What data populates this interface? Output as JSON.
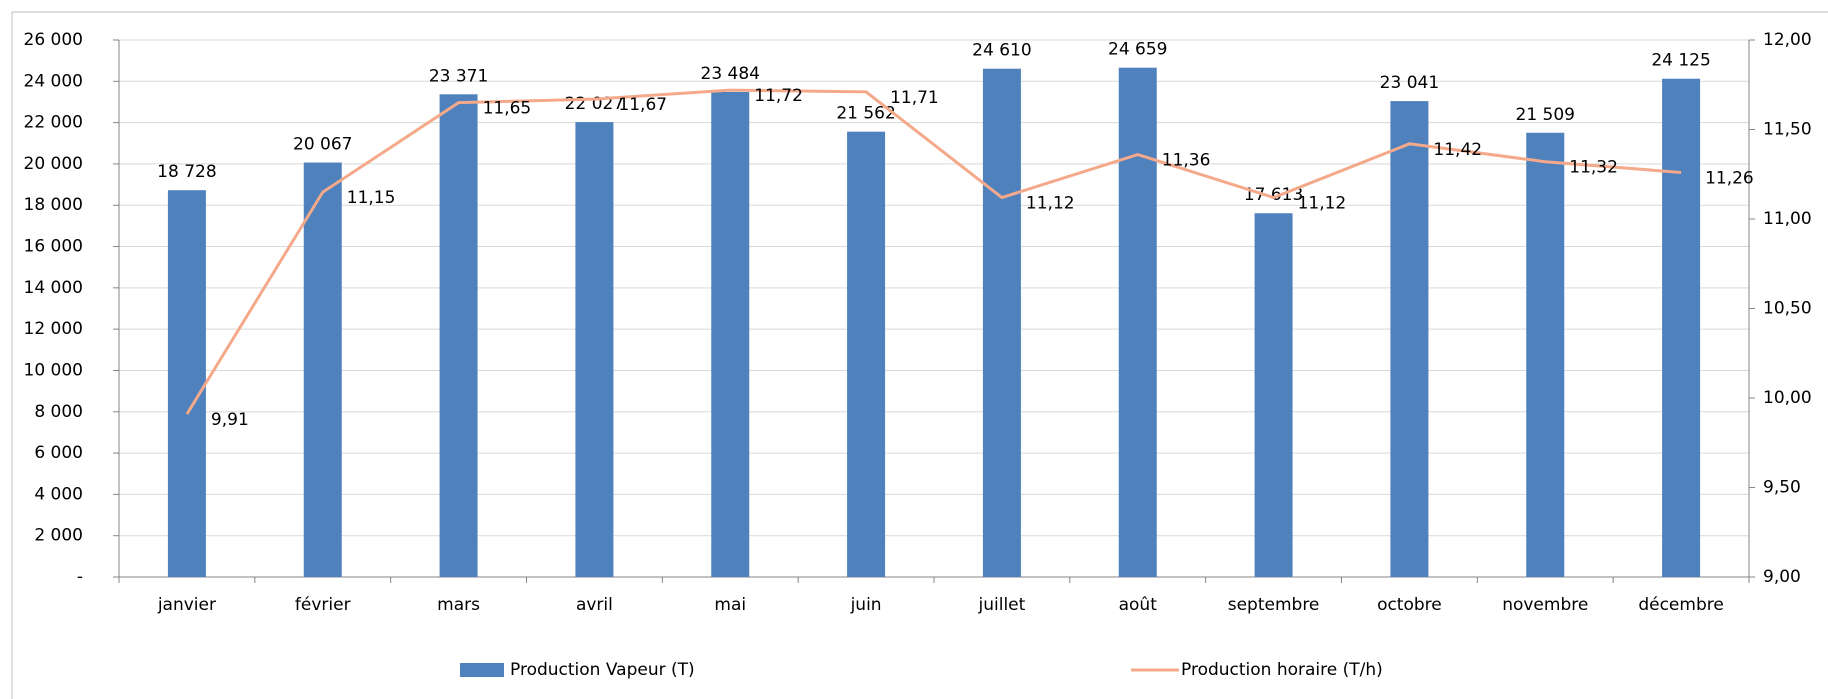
{
  "chart_data": {
    "type": "bar",
    "categories": [
      "janvier",
      "février",
      "mars",
      "avril",
      "mai",
      "juin",
      "juillet",
      "août",
      "septembre",
      "octobre",
      "novembre",
      "décembre"
    ],
    "series": [
      {
        "name": "Production Vapeur (T)",
        "type": "bar",
        "color": "#4f81bd",
        "values": [
          18728,
          20067,
          23371,
          22027,
          23484,
          21562,
          24610,
          24659,
          17613,
          23041,
          21509,
          24125
        ],
        "value_labels": [
          "18 728",
          "20 067",
          "23 371",
          "22 027",
          "23 484",
          "21 562",
          "24 610",
          "24 659",
          "17 613",
          "23 041",
          "21 509",
          "24 125"
        ]
      },
      {
        "name": "Production horaire (T/h)",
        "type": "line",
        "axis": "y2",
        "color": "#f4a98a",
        "values": [
          9.91,
          11.15,
          11.65,
          11.67,
          11.72,
          11.71,
          11.12,
          11.36,
          11.12,
          11.42,
          11.32,
          11.26
        ],
        "value_labels": [
          "9,91",
          "11,15",
          "11,65",
          "11,67",
          "11,72",
          "11,71",
          "11,12",
          "11,36",
          "11,12",
          "11,42",
          "11,32",
          "11,26"
        ]
      }
    ],
    "ylim": [
      0,
      26000
    ],
    "yticks": [
      {
        "value": 0,
        "label": "-"
      },
      {
        "value": 2000,
        "label": "2 000"
      },
      {
        "value": 4000,
        "label": "4 000"
      },
      {
        "value": 6000,
        "label": "6 000"
      },
      {
        "value": 8000,
        "label": "8 000"
      },
      {
        "value": 10000,
        "label": "10 000"
      },
      {
        "value": 12000,
        "label": "12 000"
      },
      {
        "value": 14000,
        "label": "14 000"
      },
      {
        "value": 16000,
        "label": "16 000"
      },
      {
        "value": 18000,
        "label": "18 000"
      },
      {
        "value": 20000,
        "label": "20 000"
      },
      {
        "value": 22000,
        "label": "22 000"
      },
      {
        "value": 24000,
        "label": "24 000"
      },
      {
        "value": 26000,
        "label": "26 000"
      }
    ],
    "y2lim": [
      9,
      12
    ],
    "y2ticks": [
      {
        "value": 9,
        "label": "9,00"
      },
      {
        "value": 9.5,
        "label": "9,50"
      },
      {
        "value": 10,
        "label": "10,00"
      },
      {
        "value": 10.5,
        "label": "10,50"
      },
      {
        "value": 11,
        "label": "11,00"
      },
      {
        "value": 11.5,
        "label": "11,50"
      },
      {
        "value": 12,
        "label": "12,00"
      }
    ],
    "grid": true,
    "legend": "bottom"
  }
}
